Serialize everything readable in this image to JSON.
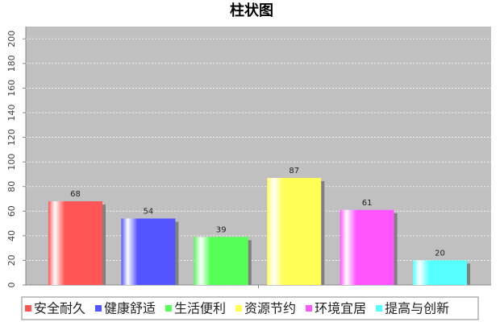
{
  "chart_data": {
    "type": "bar",
    "title": "柱状图",
    "categories": [
      null
    ],
    "series": [
      {
        "name": "安全耐久",
        "color": "#ff5555",
        "values": [
          68
        ]
      },
      {
        "name": "健康舒适",
        "color": "#5555ff",
        "values": [
          54
        ]
      },
      {
        "name": "生活便利",
        "color": "#55ff55",
        "values": [
          39
        ]
      },
      {
        "name": "资源节约",
        "color": "#ffff55",
        "values": [
          87
        ]
      },
      {
        "name": "环境宜居",
        "color": "#ff55ff",
        "values": [
          61
        ]
      },
      {
        "name": "提高与创新",
        "color": "#55ffff",
        "values": [
          20
        ]
      }
    ],
    "ylim": [
      0,
      210
    ],
    "yticks": [
      0,
      20,
      40,
      60,
      80,
      100,
      120,
      140,
      160,
      180,
      200
    ],
    "grid": true,
    "legend": "bottom"
  }
}
